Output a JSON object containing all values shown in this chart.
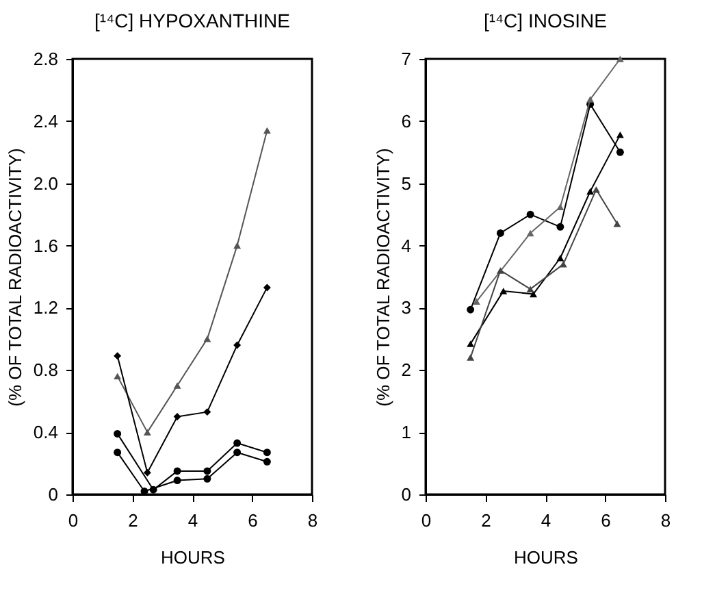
{
  "chart_data": [
    {
      "type": "line",
      "title": "[¹⁴C] HYPOXANTHINE",
      "xlabel": "HOURS",
      "ylabel": "(% OF TOTAL RADIOACTIVITY)",
      "xlim": [
        0,
        8
      ],
      "xticks": [
        0,
        2,
        4,
        6,
        8
      ],
      "ylim": [
        0,
        2.8
      ],
      "yticks": [
        0,
        0.4,
        0.8,
        1.2,
        1.6,
        {
          "value": 2,
          "label": "2.0"
        },
        2.4,
        2.8
      ],
      "grid": false,
      "series": [
        {
          "color": "#555555",
          "marker": "triangle",
          "x": [
            1.5,
            2.5,
            3.5,
            4.5,
            5.5,
            6.5
          ],
          "values": [
            0.76,
            0.4,
            0.7,
            1.0,
            1.6,
            2.34
          ]
        },
        {
          "color": "#000000",
          "marker": "diamond",
          "x": [
            1.5,
            2.5,
            3.5,
            4.5,
            5.5,
            6.5
          ],
          "values": [
            0.89,
            0.14,
            0.5,
            0.53,
            0.96,
            1.33
          ]
        },
        {
          "color": "#000000",
          "marker": "circle",
          "x": [
            1.5,
            2.7,
            3.5,
            4.5,
            5.5,
            6.5
          ],
          "values": [
            0.39,
            0.03,
            0.15,
            0.15,
            0.33,
            0.27
          ]
        },
        {
          "color": "#000000",
          "marker": "circle",
          "x": [
            1.5,
            2.4,
            3.5,
            4.5,
            5.5,
            6.5
          ],
          "values": [
            0.27,
            0.02,
            0.09,
            0.1,
            0.27,
            0.21
          ]
        }
      ]
    },
    {
      "type": "line",
      "title": "[¹⁴C] INOSINE",
      "xlabel": "HOURS",
      "ylabel": "(% OF TOTAL RADIOACTIVITY)",
      "xlim": [
        0,
        8
      ],
      "xticks": [
        0,
        2,
        4,
        6,
        8
      ],
      "ylim": [
        0,
        7
      ],
      "yticks": [
        0,
        1,
        2,
        3,
        4,
        5,
        6,
        7
      ],
      "grid": false,
      "series": [
        {
          "color": "#000000",
          "marker": "circle",
          "x": [
            1.5,
            2.5,
            3.5,
            4.5,
            5.5,
            6.5
          ],
          "values": [
            2.97,
            4.2,
            4.5,
            4.3,
            6.27,
            5.5
          ]
        },
        {
          "color": "#666666",
          "marker": "triangle",
          "x": [
            1.7,
            3.5,
            4.5,
            5.5,
            6.5
          ],
          "values": [
            3.1,
            4.2,
            4.62,
            6.35,
            7.0
          ]
        },
        {
          "color": "#000000",
          "marker": "triangle",
          "x": [
            1.5,
            2.6,
            3.6,
            4.5,
            5.5,
            6.5
          ],
          "values": [
            2.42,
            3.27,
            3.22,
            3.8,
            4.87,
            5.78
          ]
        },
        {
          "color": "#444444",
          "marker": "triangle",
          "x": [
            1.5,
            2.5,
            3.5,
            4.6,
            5.7,
            6.4
          ],
          "values": [
            2.2,
            3.6,
            3.3,
            3.7,
            4.9,
            4.35
          ]
        }
      ]
    }
  ]
}
